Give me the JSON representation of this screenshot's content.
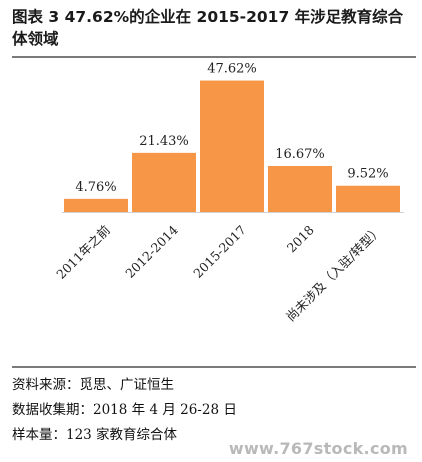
{
  "figure": {
    "title": "图表 3  47.62%的企业在 2015-2017 年涉足教育综合体领域"
  },
  "chart_data": {
    "type": "bar",
    "categories": [
      "2011年之前",
      "2012-2014",
      "2015-2017",
      "2018",
      "尚未涉及（入驻/转型）"
    ],
    "values": [
      4.76,
      21.43,
      47.62,
      16.67,
      9.52
    ],
    "data_labels": [
      "4.76%",
      "21.43%",
      "47.62%",
      "16.67%",
      "9.52%"
    ],
    "title": "",
    "xlabel": "",
    "ylabel": "",
    "ylim": [
      0,
      50
    ],
    "grid": false,
    "legend": "none",
    "bar_color": "#F79646"
  },
  "notes": {
    "source": "资料来源：觅思、广证恒生",
    "collection_date": "数据收集期：2018 年 4 月 26-28 日",
    "sample": "样本量：123 家教育综合体"
  },
  "watermark": "www.767stock.com"
}
